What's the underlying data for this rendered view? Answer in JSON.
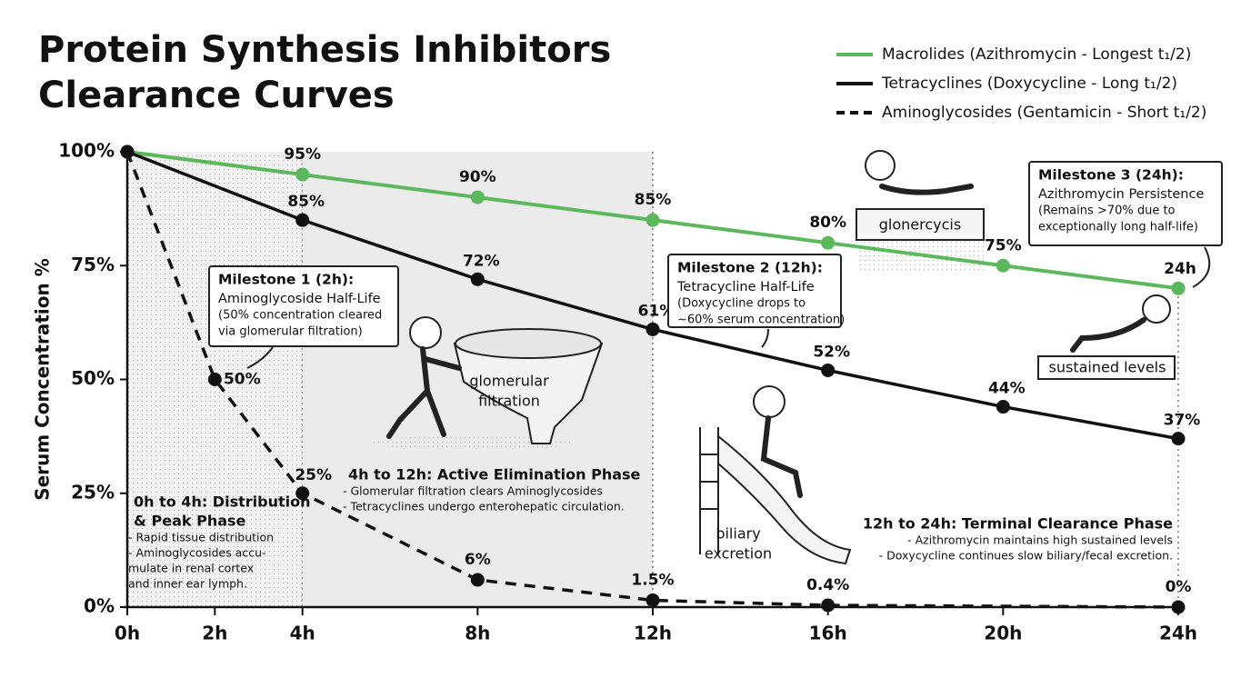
{
  "chart_data": {
    "type": "line",
    "title": "Protein Synthesis Inhibitors Clearance Curves",
    "y_label": "Serum Concentration %",
    "xlim": [
      0,
      24
    ],
    "xticks": [
      {
        "value": 0,
        "label": "0h"
      },
      {
        "value": 2,
        "label": "2h"
      },
      {
        "value": 4,
        "label": "4h"
      },
      {
        "value": 8,
        "label": "8h"
      },
      {
        "value": 12,
        "label": "12h"
      },
      {
        "value": 16,
        "label": "16h"
      },
      {
        "value": 20,
        "label": "20h"
      },
      {
        "value": 24,
        "label": "24h"
      }
    ],
    "ylim": [
      0,
      100
    ],
    "yticks": [
      {
        "value": 0,
        "label": "0%"
      },
      {
        "value": 25,
        "label": "25%"
      },
      {
        "value": 50,
        "label": "50%"
      },
      {
        "value": 75,
        "label": "75%"
      },
      {
        "value": 100,
        "label": "100%"
      }
    ],
    "legend": "top-right",
    "series": [
      {
        "name": "Macrolides (Azithromycin - Longest t₁/2)",
        "color": "#5cb85c",
        "dash": false,
        "x": [
          0,
          4,
          8,
          12,
          16,
          20,
          24
        ],
        "values": [
          100,
          95,
          90,
          85,
          80,
          75,
          70
        ],
        "value_labels": [
          null,
          "95%",
          "90%",
          "85%",
          "80%",
          "75%",
          null
        ]
      },
      {
        "name": "Tetracyclines (Doxycycline - Long t₁/2)",
        "color": "#111111",
        "dash": false,
        "x": [
          0,
          4,
          8,
          12,
          16,
          20,
          24
        ],
        "values": [
          100,
          85,
          72,
          61,
          52,
          44,
          37
        ],
        "value_labels": [
          null,
          "85%",
          "72%",
          "61%",
          "52%",
          "44%",
          "37%"
        ]
      },
      {
        "name": "Aminoglycosides (Gentamicin - Short t₁/2)",
        "color": "#111111",
        "dash": true,
        "x": [
          0,
          2,
          4,
          8,
          12,
          16,
          24
        ],
        "values": [
          100,
          50,
          25,
          6,
          1.5,
          0.4,
          0
        ],
        "value_labels": [
          null,
          "50%",
          "25%",
          "6%",
          "1.5%",
          "0.4%",
          "0%"
        ]
      }
    ],
    "phases": [
      {
        "x0": 0,
        "x1": 4,
        "fill": "#f2f2f2",
        "title": [
          "0h to 4h: Distribution",
          "& Peak Phase"
        ],
        "notes": [
          "- Rapid tissue distribution",
          "- Aminoglycosides accu-",
          "  mulate in renal cortex",
          "  and inner ear lymph."
        ]
      },
      {
        "x0": 4,
        "x1": 12,
        "fill": "#ebebeb",
        "title": [
          "4h to 12h: Active Elimination Phase"
        ],
        "notes": [
          "- Glomerular filtration clears Aminoglycosides",
          "- Tetracyclines undergo enterohepatic circulation."
        ]
      },
      {
        "x0": 12,
        "x1": 24,
        "title": [
          "12h to 24h: Terminal Clearance Phase"
        ],
        "notes": [
          "- Azithromycin maintains high sustained levels",
          "- Doxycycline continues slow biliary/fecal excretion."
        ]
      }
    ],
    "milestones": [
      {
        "title": "Milestone 1 (2h):",
        "lines": [
          "Aminoglycoside Half-Life",
          "(50% concentration cleared",
          "via glomerular filtration)"
        ]
      },
      {
        "title": "Milestone 2 (12h):",
        "lines": [
          "Tetracycline Half-Life",
          "(Doxycycline drops to",
          "~60% serum concentration)"
        ]
      },
      {
        "title": "Milestone 3 (24h):",
        "lines": [
          "Azithromycin Persistence",
          "(Remains >70% due to",
          "exceptionally long half-life)"
        ]
      }
    ],
    "annotations": [
      "24h"
    ],
    "illustrations": [
      {
        "lines": [
          "glomerular",
          "filtration"
        ]
      },
      {
        "lines": [
          "biliary",
          "excretion"
        ]
      },
      {
        "lines": [
          "glonercycis"
        ]
      },
      {
        "lines": [
          "sustained levels"
        ]
      }
    ]
  }
}
